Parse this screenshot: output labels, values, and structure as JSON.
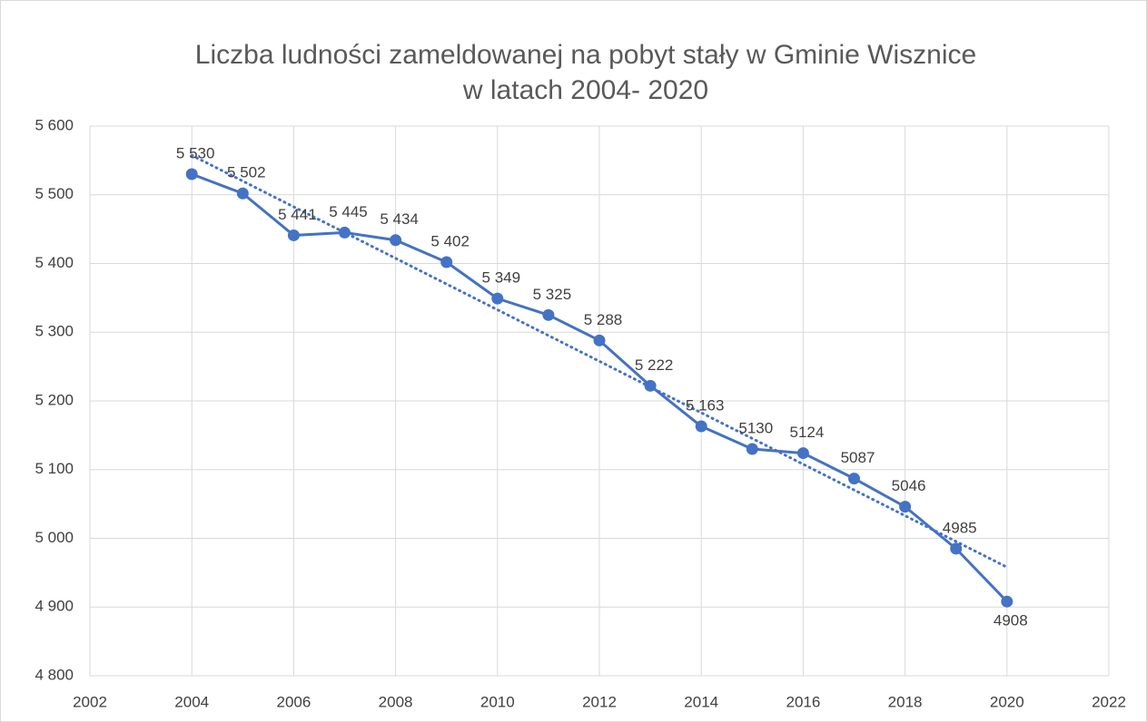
{
  "chart_data": {
    "type": "line",
    "title": "Liczba ludności zameldowanej na pobyt stały w Gminie Wisznice",
    "subtitle": "w latach 2004- 2020",
    "x": [
      2004,
      2005,
      2006,
      2007,
      2008,
      2009,
      2010,
      2011,
      2012,
      2013,
      2014,
      2015,
      2016,
      2017,
      2018,
      2019,
      2020
    ],
    "values": [
      5530,
      5502,
      5441,
      5445,
      5434,
      5402,
      5349,
      5325,
      5288,
      5222,
      5163,
      5130,
      5124,
      5087,
      5046,
      4985,
      4908
    ],
    "value_labels": [
      "5 530",
      "5 502",
      "5 441",
      "5 445",
      "5 434",
      "5 402",
      "5 349",
      "5 325",
      "5 288",
      "5 222",
      "5 163",
      "5130",
      "5124",
      "5087",
      "5046",
      "4985",
      "4908"
    ],
    "color": "#4472c4",
    "trendline": "linear",
    "xlim": [
      2002,
      2022
    ],
    "xticks": [
      2002,
      2004,
      2006,
      2008,
      2010,
      2012,
      2014,
      2016,
      2018,
      2020,
      2022
    ],
    "ylim": [
      4800,
      5600
    ],
    "yticks": [
      {
        "value": 4800,
        "label": "4 800"
      },
      {
        "value": 4900,
        "label": "4 900"
      },
      {
        "value": 5000,
        "label": "5 000"
      },
      {
        "value": 5100,
        "label": "5 100"
      },
      {
        "value": 5200,
        "label": "5 200"
      },
      {
        "value": 5300,
        "label": "5 300"
      },
      {
        "value": 5400,
        "label": "5 400"
      },
      {
        "value": 5500,
        "label": "5 500"
      },
      {
        "value": 5600,
        "label": "5 600"
      }
    ],
    "grid": true
  }
}
